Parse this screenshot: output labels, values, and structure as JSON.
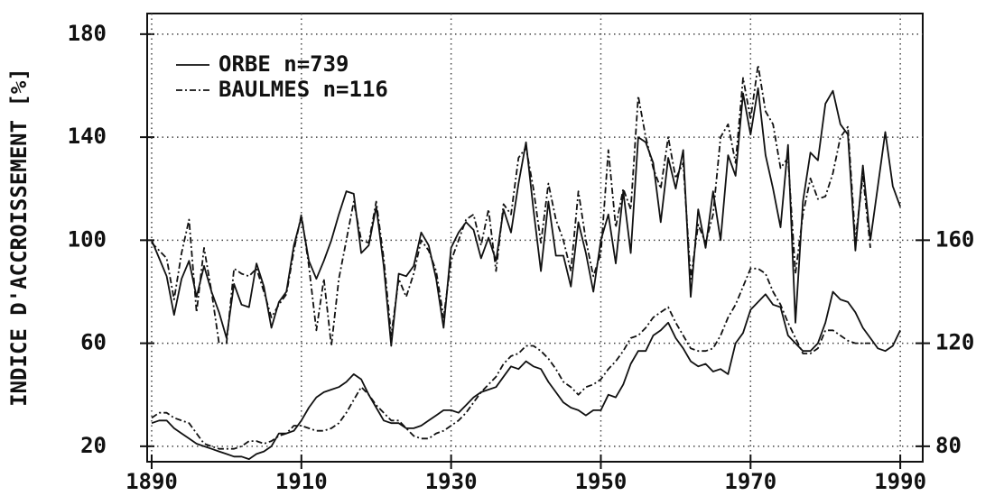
{
  "chart_data": {
    "type": "line",
    "ylabel": "INDICE D'ACCROISSEMENT [%]",
    "x": [
      1890,
      1891,
      1892,
      1893,
      1894,
      1895,
      1896,
      1897,
      1898,
      1899,
      1900,
      1901,
      1902,
      1903,
      1904,
      1905,
      1906,
      1907,
      1908,
      1909,
      1910,
      1911,
      1912,
      1913,
      1914,
      1915,
      1916,
      1917,
      1918,
      1919,
      1920,
      1921,
      1922,
      1923,
      1924,
      1925,
      1926,
      1927,
      1928,
      1929,
      1930,
      1931,
      1932,
      1933,
      1934,
      1935,
      1936,
      1937,
      1938,
      1939,
      1940,
      1941,
      1942,
      1943,
      1944,
      1945,
      1946,
      1947,
      1948,
      1949,
      1950,
      1951,
      1952,
      1953,
      1954,
      1955,
      1956,
      1957,
      1958,
      1959,
      1960,
      1961,
      1962,
      1963,
      1964,
      1965,
      1966,
      1967,
      1968,
      1969,
      1970,
      1971,
      1972,
      1973,
      1974,
      1975,
      1976,
      1977,
      1978,
      1979,
      1980,
      1981,
      1982,
      1983,
      1984,
      1985,
      1986,
      1987,
      1988,
      1989,
      1990
    ],
    "series": [
      {
        "name": "ORBE n=739",
        "color": "#111111",
        "line_style": "solid",
        "values": [
          100,
          93,
          86,
          71,
          85,
          92,
          78,
          90,
          80,
          72,
          62,
          83,
          75,
          74,
          91,
          82,
          66,
          76,
          80,
          98,
          109,
          92,
          85,
          92,
          100,
          110,
          119,
          118,
          95,
          98,
          113,
          90,
          59,
          87,
          86,
          90,
          103,
          98,
          85,
          66,
          97,
          103,
          107,
          104,
          93,
          101,
          92,
          112,
          103,
          122,
          138,
          112,
          88,
          115,
          94,
          94,
          82,
          107,
          95,
          80,
          100,
          110,
          91,
          119,
          95,
          140,
          138,
          130,
          107,
          132,
          120,
          135,
          78,
          112,
          97,
          119,
          100,
          133,
          125,
          157,
          141,
          159,
          133,
          120,
          105,
          137,
          68,
          115,
          134,
          131,
          153,
          158,
          145,
          141,
          96,
          129,
          100,
          121,
          142,
          121,
          113
        ]
      },
      {
        "name": "BAULMES n=116",
        "color": "#111111",
        "line_style": "dashdot",
        "values": [
          99,
          96,
          93,
          77,
          95,
          108,
          72,
          97,
          80,
          60,
          60,
          89,
          87,
          86,
          89,
          80,
          70,
          75,
          79,
          96,
          110,
          90,
          65,
          85,
          59,
          85,
          100,
          115,
          100,
          99,
          115,
          93,
          63,
          85,
          78,
          87,
          100,
          96,
          88,
          70,
          92,
          100,
          108,
          110,
          98,
          112,
          88,
          114,
          110,
          132,
          136,
          120,
          99,
          122,
          108,
          100,
          88,
          119,
          100,
          86,
          95,
          135,
          105,
          120,
          112,
          156,
          140,
          128,
          120,
          140,
          124,
          130,
          85,
          106,
          99,
          110,
          140,
          145,
          130,
          163,
          147,
          168,
          150,
          145,
          128,
          132,
          87,
          110,
          124,
          116,
          117,
          126,
          140,
          144,
          100,
          125,
          97,
          null,
          null,
          null,
          null
        ]
      },
      {
        "color": "#111111",
        "line_style": "solid",
        "axis": "y2",
        "values": [
          89,
          90,
          90,
          87,
          85,
          83,
          81,
          80,
          79,
          78,
          77,
          76,
          76,
          75,
          77,
          78,
          80,
          85,
          85,
          86,
          90,
          95,
          99,
          101,
          102,
          103,
          105,
          108,
          106,
          100,
          95,
          90,
          89,
          89,
          87,
          87,
          88,
          90,
          92,
          94,
          94,
          93,
          96,
          99,
          101,
          102,
          103,
          107,
          111,
          110,
          113,
          111,
          110,
          105,
          101,
          97,
          95,
          94,
          92,
          94,
          94,
          100,
          99,
          104,
          112,
          117,
          117,
          123,
          125,
          128,
          122,
          118,
          113,
          111,
          112,
          109,
          110,
          108,
          120,
          124,
          133,
          136,
          139,
          135,
          134,
          123,
          120,
          117,
          117,
          120,
          128,
          140,
          137,
          136,
          132,
          126,
          122,
          118,
          117,
          119,
          125
        ]
      },
      {
        "color": "#111111",
        "line_style": "dashdot",
        "axis": "y2",
        "values": [
          91,
          93,
          93,
          91,
          90,
          89,
          85,
          81,
          80,
          79,
          79,
          79,
          80,
          82,
          82,
          81,
          82,
          84,
          85,
          88,
          88,
          87,
          86,
          86,
          87,
          89,
          93,
          98,
          103,
          100,
          96,
          93,
          90,
          90,
          87,
          84,
          83,
          83,
          85,
          86,
          88,
          90,
          93,
          97,
          101,
          104,
          107,
          112,
          115,
          116,
          119,
          119,
          117,
          114,
          110,
          105,
          103,
          100,
          103,
          104,
          106,
          110,
          113,
          117,
          122,
          123,
          126,
          130,
          132,
          134,
          128,
          123,
          118,
          117,
          117,
          118,
          123,
          130,
          135,
          142,
          149,
          149,
          147,
          140,
          135,
          128,
          122,
          116,
          116,
          118,
          125,
          125,
          123,
          121,
          120,
          120,
          120,
          null,
          null,
          null,
          null
        ]
      }
    ],
    "xlim": [
      1889.4,
      1993
    ],
    "xticks": [
      1890,
      1910,
      1930,
      1950,
      1970,
      1990
    ],
    "ylim": [
      14,
      188
    ],
    "yticks": [
      20,
      60,
      100,
      140,
      180
    ],
    "y2lim": [
      74,
      248
    ],
    "y2ticks": [
      80,
      120,
      160
    ],
    "grid": true,
    "grid_style": "dotted",
    "legend": "upper left"
  }
}
